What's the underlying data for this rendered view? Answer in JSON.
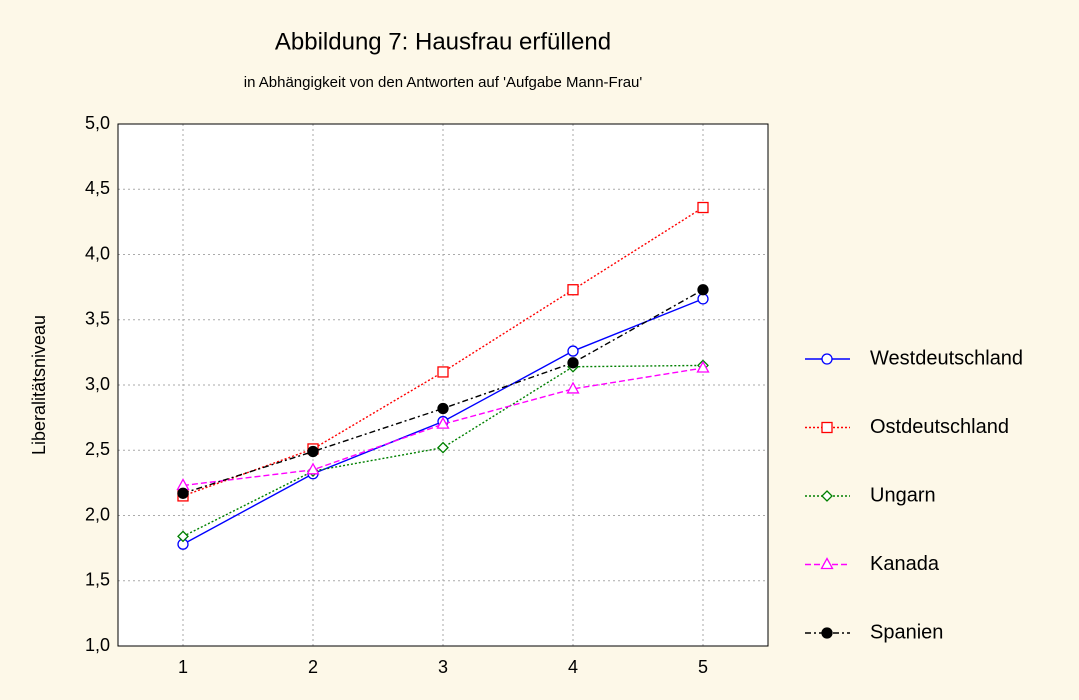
{
  "chart_data": {
    "type": "line",
    "title": "Abbildung 7: Hausfrau erfüllend",
    "subtitle": "in Abhängigkeit von den Antworten auf 'Aufgabe Mann-Frau'",
    "y_label": "Liberalitätsniveau",
    "x": [
      1,
      2,
      3,
      4,
      5
    ],
    "xlim": [
      0.5,
      5.5
    ],
    "xticks": [
      1,
      2,
      3,
      4,
      5
    ],
    "ylim": [
      1,
      5
    ],
    "yticks": [
      {
        "value": 1,
        "label": "1,0"
      },
      {
        "value": 1.5,
        "label": "1,5"
      },
      {
        "value": 2,
        "label": "2,0"
      },
      {
        "value": 2.5,
        "label": "2,5"
      },
      {
        "value": 3,
        "label": "3,0"
      },
      {
        "value": 3.5,
        "label": "3,5"
      },
      {
        "value": 4,
        "label": "4,0"
      },
      {
        "value": 4.5,
        "label": "4,5"
      },
      {
        "value": 5,
        "label": "5,0"
      }
    ],
    "grid": true,
    "legend": "right",
    "series": [
      {
        "name": "Westdeutschland",
        "color": "#0000ff",
        "marker": "circle",
        "dash": "solid",
        "values": [
          1.78,
          2.32,
          2.72,
          3.26,
          3.66
        ]
      },
      {
        "name": "Ostdeutschland",
        "color": "#ff0000",
        "marker": "square",
        "dash": "dotted",
        "values": [
          2.15,
          2.51,
          3.1,
          3.73,
          4.36
        ]
      },
      {
        "name": "Ungarn",
        "color": "#008000",
        "marker": "diamond",
        "dash": "dotted",
        "values": [
          1.84,
          2.34,
          2.52,
          3.14,
          3.15
        ]
      },
      {
        "name": "Kanada",
        "color": "#ff00ff",
        "marker": "triangle",
        "dash": "dashed",
        "values": [
          2.23,
          2.35,
          2.7,
          2.97,
          3.13
        ]
      },
      {
        "name": "Spanien",
        "color": "#000000",
        "marker": "filled-circle",
        "dash": "dashdot",
        "values": [
          2.17,
          2.49,
          2.82,
          3.17,
          3.73
        ]
      }
    ]
  }
}
